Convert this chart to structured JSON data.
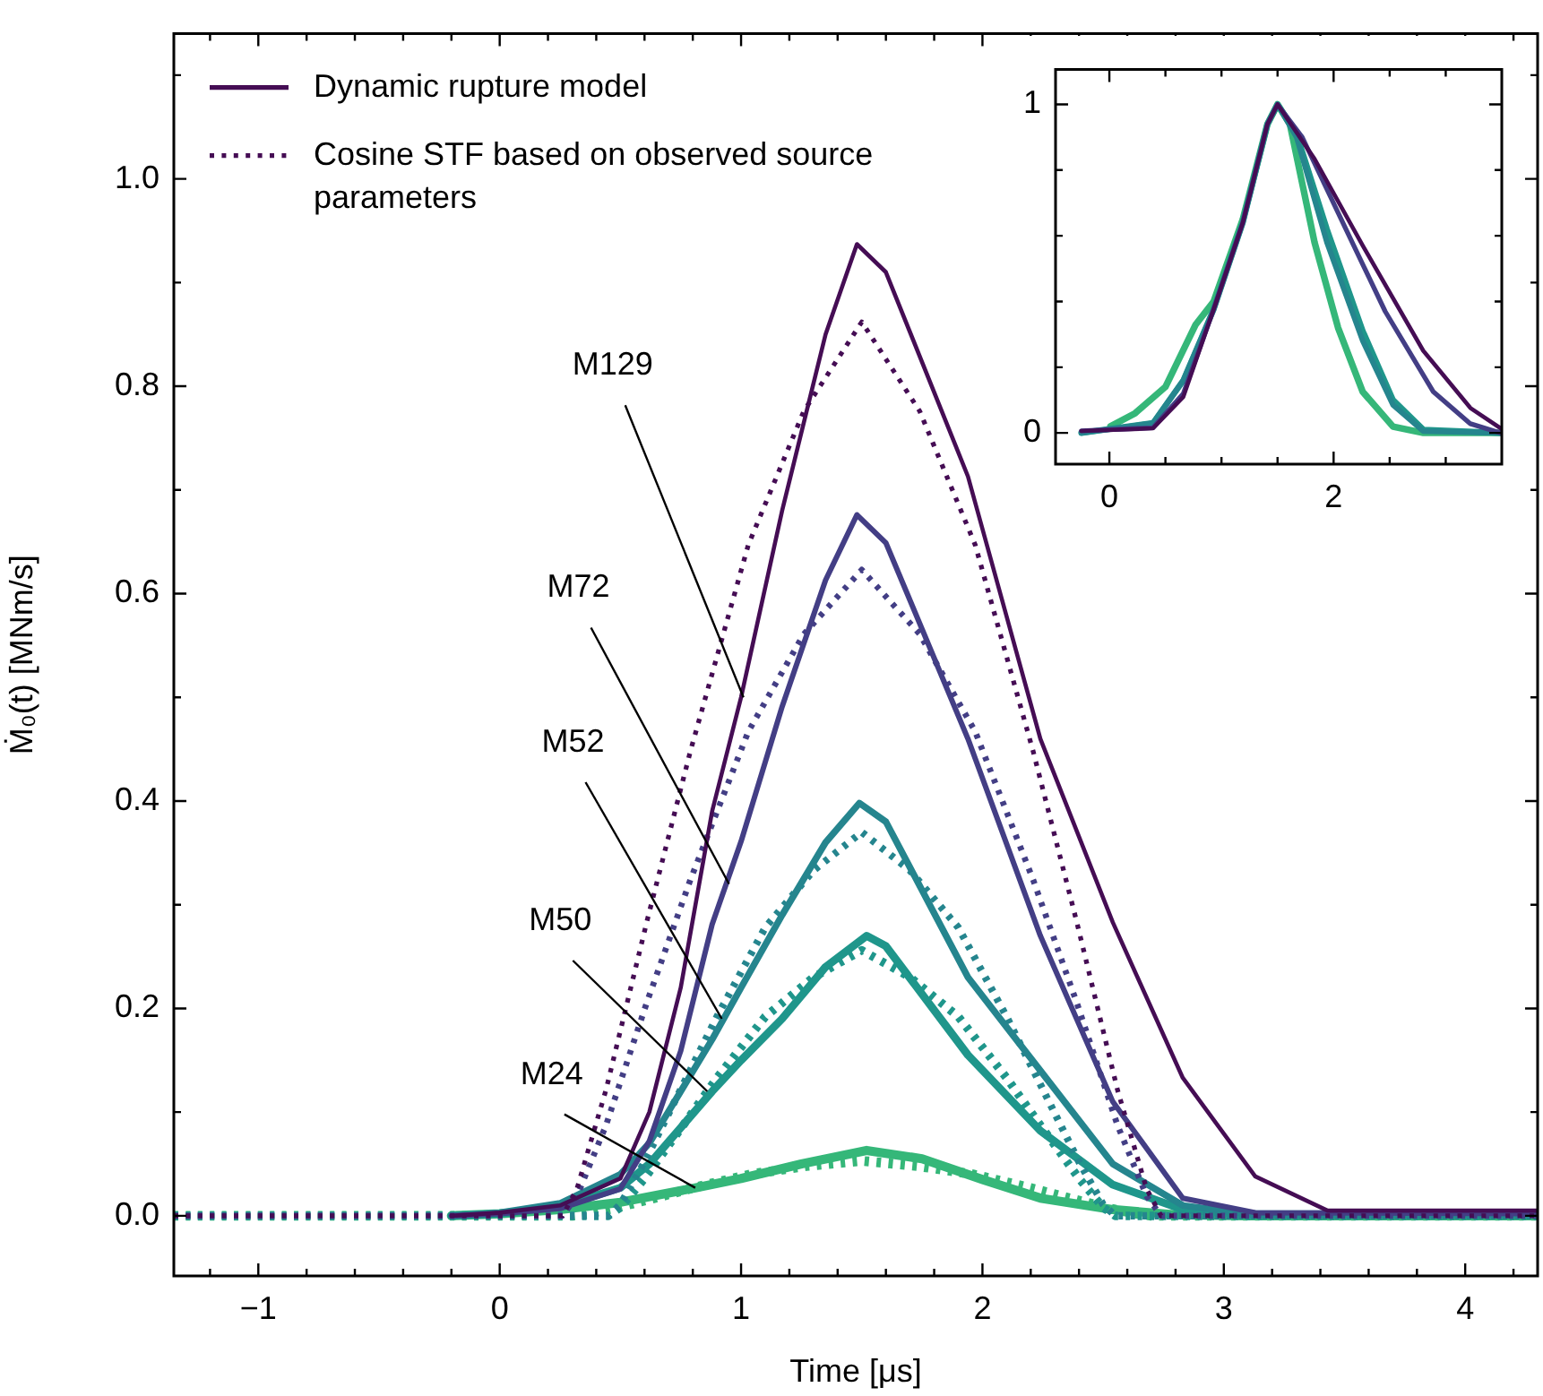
{
  "chart_data": [
    {
      "type": "line",
      "xlabel": "Time [μs]",
      "ylabel": "Ṁ₀(t) [MNm/s]",
      "xlim": [
        -1.35,
        4.3
      ],
      "ylim": [
        -0.058,
        1.14
      ],
      "xticks": [
        {
          "value": -1.2,
          "label": null
        },
        {
          "value": -1,
          "label": "−1"
        },
        {
          "value": -0.8,
          "label": null
        },
        {
          "value": -0.6,
          "label": null
        },
        {
          "value": -0.4,
          "label": null
        },
        {
          "value": -0.2,
          "label": null
        },
        0,
        {
          "value": 0.2,
          "label": null
        },
        {
          "value": 0.4,
          "label": null
        },
        {
          "value": 0.6,
          "label": null
        },
        {
          "value": 0.8,
          "label": null
        },
        1,
        {
          "value": 1.2,
          "label": null
        },
        {
          "value": 1.4,
          "label": null
        },
        {
          "value": 1.6,
          "label": null
        },
        {
          "value": 1.8,
          "label": null
        },
        2,
        {
          "value": 2.2,
          "label": null
        },
        {
          "value": 2.4,
          "label": null
        },
        {
          "value": 2.6,
          "label": null
        },
        {
          "value": 2.8,
          "label": null
        },
        3,
        {
          "value": 3.2,
          "label": null
        },
        {
          "value": 3.4,
          "label": null
        },
        {
          "value": 3.6,
          "label": null
        },
        {
          "value": 3.8,
          "label": null
        },
        4,
        {
          "value": 4.2,
          "label": null
        }
      ],
      "yticks": [
        {
          "value": 0,
          "label": "0.0"
        },
        {
          "value": 0.1,
          "label": null
        },
        {
          "value": 0.2,
          "label": "0.2"
        },
        {
          "value": 0.3,
          "label": null
        },
        {
          "value": 0.4,
          "label": "0.4"
        },
        {
          "value": 0.5,
          "label": null
        },
        {
          "value": 0.6,
          "label": "0.6"
        },
        {
          "value": 0.7,
          "label": null
        },
        {
          "value": 0.8,
          "label": "0.8"
        },
        {
          "value": 0.9,
          "label": null
        },
        {
          "value": 1,
          "label": "1.0"
        },
        {
          "value": 1.1,
          "label": null
        }
      ],
      "grid": false,
      "legend": "top left",
      "marker": "none",
      "series": [
        {
          "name": "Dynamic rupture model",
          "color": "#450d54",
          "line_style": "solid",
          "x": [
            -0.2,
            0,
            0.25,
            0.5,
            0.62,
            0.75,
            0.88,
            1.0,
            1.17,
            1.35,
            1.48,
            1.6,
            1.94,
            2.24,
            2.54,
            2.83,
            3.13,
            3.43,
            4.3
          ],
          "values": [
            0,
            0.003,
            0.01,
            0.036,
            0.1,
            0.22,
            0.39,
            0.5,
            0.68,
            0.85,
            0.937,
            0.91,
            0.713,
            0.46,
            0.283,
            0.133,
            0.038,
            0.005,
            0.005
          ]
        },
        {
          "name": "Cosine STF based on observed source parameters",
          "color": "#450d54",
          "line_style": "dotted",
          "x": [
            -1.35,
            0.26,
            0.32,
            0.44,
            0.61,
            0.79,
            1.03,
            1.26,
            1.5,
            1.74,
            1.97,
            2.21,
            2.39,
            2.56,
            2.68,
            2.74,
            4.3
          ],
          "values": [
            0,
            0,
            0.026,
            0.121,
            0.284,
            0.448,
            0.647,
            0.776,
            0.862,
            0.776,
            0.647,
            0.448,
            0.284,
            0.121,
            0.026,
            0,
            0
          ]
        },
        {
          "color": "#433e85",
          "line_style": "solid",
          "x": [
            -0.2,
            0,
            0.25,
            0.5,
            0.62,
            0.75,
            0.88,
            1.0,
            1.17,
            1.35,
            1.48,
            1.6,
            1.94,
            2.24,
            2.54,
            2.83,
            3.13,
            4.3
          ],
          "values": [
            0,
            0.002,
            0.007,
            0.026,
            0.072,
            0.159,
            0.281,
            0.361,
            0.491,
            0.613,
            0.676,
            0.649,
            0.46,
            0.27,
            0.11,
            0.017,
            0.003,
            0.002
          ]
        },
        {
          "color": "#433e85",
          "line_style": "dotted",
          "x": [
            -1.35,
            0.26,
            0.32,
            0.44,
            0.61,
            0.79,
            1.03,
            1.26,
            1.5,
            1.74,
            1.97,
            2.21,
            2.39,
            2.56,
            2.68,
            2.74,
            4.3
          ],
          "values": [
            0,
            0,
            0.019,
            0.087,
            0.206,
            0.324,
            0.467,
            0.561,
            0.623,
            0.561,
            0.467,
            0.324,
            0.206,
            0.087,
            0.019,
            0,
            0
          ]
        },
        {
          "color": "#25858e",
          "line_style": "solid",
          "x": [
            -0.2,
            0,
            0.25,
            0.5,
            0.62,
            0.75,
            0.88,
            1.0,
            1.17,
            1.35,
            1.49,
            1.6,
            1.94,
            2.24,
            2.54,
            2.83,
            3.1,
            4.3
          ],
          "values": [
            0,
            0.003,
            0.012,
            0.04,
            0.07,
            0.12,
            0.17,
            0.22,
            0.29,
            0.36,
            0.398,
            0.38,
            0.23,
            0.14,
            0.05,
            0.01,
            0.002,
            0.002
          ]
        },
        {
          "color": "#25858e",
          "line_style": "dotted",
          "x": [
            -1.35,
            0.45,
            0.5,
            0.6,
            0.75,
            0.9,
            1.1,
            1.3,
            1.5,
            1.7,
            1.9,
            2.1,
            2.25,
            2.4,
            2.5,
            2.55,
            4.3
          ],
          "values": [
            0,
            0,
            0.011,
            0.052,
            0.122,
            0.192,
            0.278,
            0.333,
            0.37,
            0.333,
            0.278,
            0.192,
            0.122,
            0.052,
            0.011,
            0,
            0
          ]
        },
        {
          "color": "#1f968b",
          "line_style": "solid",
          "x": [
            -0.2,
            0,
            0.25,
            0.5,
            0.62,
            0.75,
            0.88,
            1.0,
            1.17,
            1.35,
            1.52,
            1.6,
            1.94,
            2.24,
            2.54,
            2.83,
            3.1,
            4.3
          ],
          "values": [
            0,
            0.002,
            0.009,
            0.027,
            0.05,
            0.085,
            0.12,
            0.15,
            0.19,
            0.24,
            0.27,
            0.26,
            0.155,
            0.082,
            0.03,
            0.006,
            0.001,
            0.001
          ]
        },
        {
          "color": "#1f968b",
          "line_style": "dotted",
          "x": [
            -1.35,
            0.45,
            0.5,
            0.6,
            0.75,
            0.9,
            1.1,
            1.3,
            1.5,
            1.7,
            1.9,
            2.1,
            2.25,
            2.4,
            2.5,
            2.55,
            4.3
          ],
          "values": [
            0,
            0,
            0.008,
            0.036,
            0.084,
            0.133,
            0.192,
            0.23,
            0.256,
            0.23,
            0.192,
            0.133,
            0.084,
            0.036,
            0.008,
            0,
            0
          ]
        },
        {
          "color": "#35b779",
          "line_style": "solid",
          "x": [
            -0.2,
            0,
            0.25,
            0.5,
            0.81,
            1.0,
            1.25,
            1.52,
            1.75,
            2.0,
            2.24,
            2.54,
            2.8,
            3.1,
            4.3
          ],
          "values": [
            0,
            0.002,
            0.006,
            0.013,
            0.027,
            0.036,
            0.05,
            0.063,
            0.055,
            0.035,
            0.017,
            0.006,
            0.001,
            0,
            0
          ]
        },
        {
          "color": "#35b779",
          "line_style": "dotted",
          "x": [
            -1.35,
            0.3,
            0.36,
            0.47,
            0.64,
            0.82,
            1.04,
            1.27,
            1.5,
            1.73,
            1.96,
            2.18,
            2.36,
            2.53,
            2.64,
            2.7,
            4.3
          ],
          "values": [
            0,
            0,
            0.002,
            0.007,
            0.017,
            0.028,
            0.04,
            0.048,
            0.053,
            0.048,
            0.04,
            0.028,
            0.017,
            0.007,
            0.002,
            0,
            0
          ]
        }
      ],
      "annotations": [
        {
          "text": "M129",
          "x": 1.01,
          "y": 0.5
        },
        {
          "text": "M72",
          "x": 0.95,
          "y": 0.32
        },
        {
          "text": "M52",
          "x": 0.92,
          "y": 0.19
        },
        {
          "text": "M50",
          "x": 0.86,
          "y": 0.12
        },
        {
          "text": "M24",
          "x": 0.81,
          "y": 0.027
        }
      ]
    },
    {
      "type": "line",
      "xlim": [
        -0.48,
        3.5
      ],
      "ylim": [
        -0.095,
        1.106
      ],
      "xticks": [
        0,
        {
          "value": 0.5,
          "label": null
        },
        {
          "value": 1,
          "label": null
        },
        {
          "value": 1.5,
          "label": null
        },
        2,
        {
          "value": 2.5,
          "label": null
        },
        {
          "value": 3,
          "label": null
        }
      ],
      "yticks": [
        0,
        {
          "value": 0.2,
          "label": null
        },
        {
          "value": 0.4,
          "label": null
        },
        {
          "value": 0.6,
          "label": null
        },
        {
          "value": 0.8,
          "label": null
        },
        1
      ],
      "grid": false,
      "legend": false,
      "marker": "none",
      "line_style": "solid",
      "series": [
        {
          "color": "#450d54",
          "x": [
            -0.25,
            0.39,
            0.66,
            0.93,
            1.19,
            1.41,
            1.5,
            1.83,
            2.26,
            2.8,
            3.22,
            3.49
          ],
          "values": [
            0.006,
            0.014,
            0.11,
            0.376,
            0.64,
            0.94,
            1,
            0.834,
            0.57,
            0.25,
            0.076,
            0.014
          ]
        },
        {
          "color": "#433e85",
          "x": [
            -0.25,
            0.39,
            0.66,
            0.93,
            1.19,
            1.41,
            1.5,
            1.72,
            2.04,
            2.46,
            2.89,
            3.22,
            3.49
          ],
          "values": [
            0.006,
            0.016,
            0.12,
            0.376,
            0.64,
            0.94,
            1,
            0.9,
            0.67,
            0.37,
            0.125,
            0.028,
            0
          ]
        },
        {
          "color": "#25858e",
          "x": [
            -0.25,
            0.39,
            0.66,
            0.93,
            1.19,
            1.41,
            1.5,
            1.67,
            1.94,
            2.26,
            2.53,
            2.8,
            3.49
          ],
          "values": [
            0,
            0.03,
            0.16,
            0.376,
            0.64,
            0.94,
            1,
            0.9,
            0.58,
            0.28,
            0.085,
            0.005,
            0
          ]
        },
        {
          "color": "#1f968b",
          "x": [
            -0.25,
            0.39,
            0.66,
            0.93,
            1.19,
            1.41,
            1.5,
            1.67,
            1.94,
            2.26,
            2.53,
            2.8,
            3.49
          ],
          "values": [
            0,
            0.03,
            0.16,
            0.376,
            0.64,
            0.94,
            1,
            0.91,
            0.62,
            0.31,
            0.1,
            0.01,
            0
          ]
        },
        {
          "color": "#35b779",
          "x": [
            0.01,
            0.23,
            0.5,
            0.77,
            0.93,
            1.19,
            1.41,
            1.5,
            1.61,
            1.83,
            2.04,
            2.26,
            2.53,
            2.8,
            3.49
          ],
          "values": [
            0.02,
            0.06,
            0.14,
            0.33,
            0.4,
            0.65,
            0.94,
            1,
            0.94,
            0.58,
            0.32,
            0.125,
            0.019,
            0,
            0
          ]
        }
      ]
    }
  ]
}
